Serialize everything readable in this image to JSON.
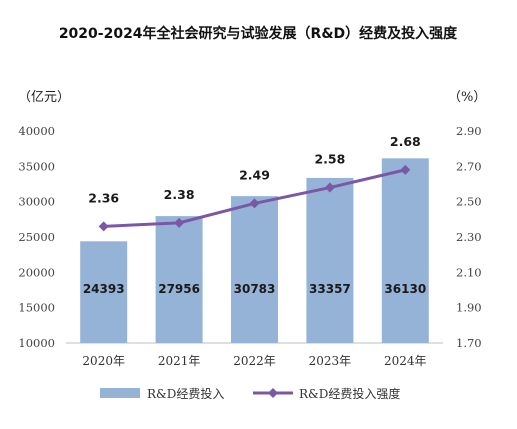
{
  "chart_data": {
    "type": "bar",
    "title": "2020-2024年全社会研究与试验发展（R&D）经费及投入强度",
    "left_axis_unit": "（亿元）",
    "right_axis_unit": "（%）",
    "categories": [
      "2020年",
      "2021年",
      "2022年",
      "2023年",
      "2024年"
    ],
    "series": [
      {
        "name": "R&D经费投入",
        "type": "bar",
        "axis": "left",
        "values": [
          24393,
          27956,
          30783,
          33357,
          36130
        ],
        "labels": [
          "24393",
          "27956",
          "30783",
          "33357",
          "36130"
        ],
        "color": "#95b3d7"
      },
      {
        "name": "R&D经费投入强度",
        "type": "line",
        "axis": "right",
        "values": [
          2.36,
          2.38,
          2.49,
          2.58,
          2.68
        ],
        "labels": [
          "2.36",
          "2.38",
          "2.49",
          "2.58",
          "2.68"
        ],
        "color": "#7b58a6"
      }
    ],
    "left_axis": {
      "min": 10000,
      "max": 40000,
      "ticks": [
        "10000",
        "15000",
        "20000",
        "25000",
        "30000",
        "35000",
        "40000"
      ]
    },
    "right_axis": {
      "min": 1.7,
      "max": 2.9,
      "ticks": [
        "1.70",
        "1.90",
        "2.10",
        "2.30",
        "2.50",
        "2.70",
        "2.90"
      ]
    },
    "grid": false,
    "legend_position": "bottom"
  }
}
